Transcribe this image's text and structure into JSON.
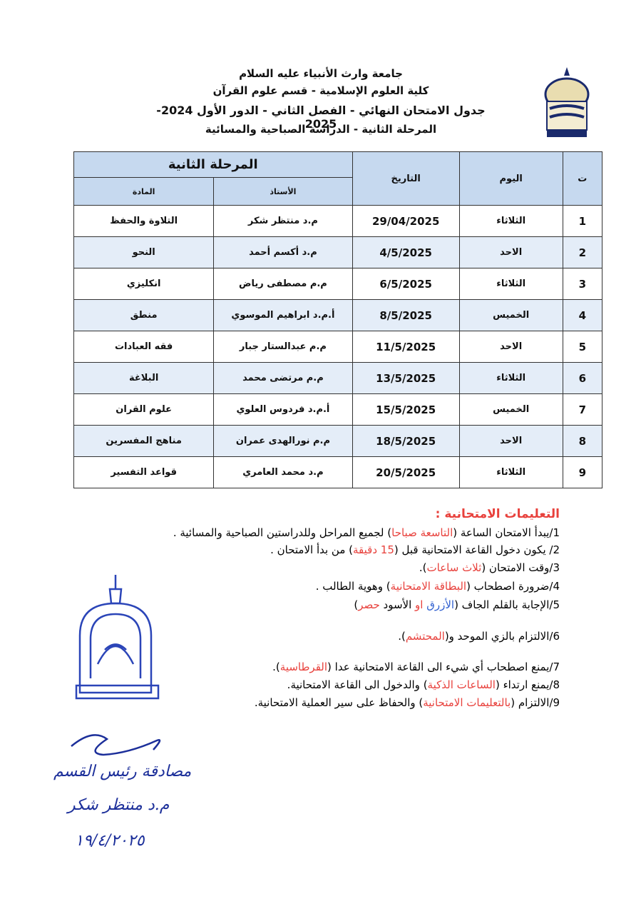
{
  "header": {
    "university": "جامعة وارث الأنبياء عليه السلام",
    "college": "كلية العلوم الإسلامية - قسم علوم القرآن",
    "schedule": "جدول الامتحان النهائي - الفصل الثاني - الدور الأول 2024-2025",
    "stage": "المرحلة الثانية - الدراسة الصباحية والمسائية"
  },
  "table": {
    "group_header": "المرحلة الثانية",
    "columns": [
      "ت",
      "اليوم",
      "التاريخ",
      "الأستاذ",
      "المادة"
    ],
    "rows": [
      [
        1,
        "الثلاثاء",
        "29/04/2025",
        "م.د منتظر شكر",
        "التلاوة والحفظ"
      ],
      [
        2,
        "الاحد",
        "4/5/2025",
        "م.د أكسم أحمد",
        "النحو"
      ],
      [
        3,
        "الثلاثاء",
        "6/5/2025",
        "م.م مصطفى رياض",
        "انكليزي"
      ],
      [
        4,
        "الخميس",
        "8/5/2025",
        "أ.م.د ابراهيم الموسوي",
        "منطق"
      ],
      [
        5,
        "الاحد",
        "11/5/2025",
        "م.م عبدالستار جبار",
        "فقه العبادات"
      ],
      [
        6,
        "الثلاثاء",
        "13/5/2025",
        "م.م مرتضى محمد",
        "البلاغة"
      ],
      [
        7,
        "الخميس",
        "15/5/2025",
        "أ.م.د فردوس العلوي",
        "علوم القران"
      ],
      [
        8,
        "الاحد",
        "18/5/2025",
        "م.م نورالهدى عمران",
        "مناهج المفسرين"
      ],
      [
        9,
        "الثلاثاء",
        "20/5/2025",
        "م.د محمد العامري",
        "قواعد التفسير"
      ]
    ]
  },
  "instructions": {
    "title": "التعليمات الامتحانية :",
    "items": [
      {
        "parts": [
          {
            "text": "1/يبدأ الامتحان الساعة (",
            "color": "#000000"
          },
          {
            "text": "التاسعة صباحا",
            "color": "#e8413c"
          },
          {
            "text": ") لجميع المراحل وللدراستين الصباحية والمسائية .",
            "color": "#000000"
          }
        ]
      },
      {
        "parts": [
          {
            "text": "2/ يكون دخول القاعة الامتحانية قبل (",
            "color": "#000000"
          },
          {
            "text": "15 دقيقة",
            "color": "#e8413c"
          },
          {
            "text": ") من بدأ الامتحان .",
            "color": "#000000"
          }
        ]
      },
      {
        "parts": [
          {
            "text": "3/وقت الامتحان (",
            "color": "#000000"
          },
          {
            "text": "ثلاث ساعات",
            "color": "#e8413c"
          },
          {
            "text": ").",
            "color": "#000000"
          }
        ]
      },
      {
        "parts": [
          {
            "text": "4/ضرورة اصطحاب (",
            "color": "#000000"
          },
          {
            "text": "البطاقة الامتحانية",
            "color": "#e8413c"
          },
          {
            "text": ") وهوية الطالب .",
            "color": "#000000"
          }
        ]
      },
      {
        "parts": [
          {
            "text": "5/الإجابة بالقلم الجاف (",
            "color": "#000000"
          },
          {
            "text": "الأزرق",
            "color": "#2f5fd0"
          },
          {
            "text": " او ",
            "color": "#e8413c"
          },
          {
            "text": "الأسود",
            "color": "#000000"
          },
          {
            "text": " حصر",
            "color": "#e8413c"
          },
          {
            "text": ")",
            "color": "#000000"
          }
        ]
      },
      {
        "parts": [
          {
            "text": "6/الالتزام بالزي الموحد و(",
            "color": "#000000"
          },
          {
            "text": "المحتشم",
            "color": "#e8413c"
          },
          {
            "text": ").",
            "color": "#000000"
          }
        ]
      },
      {
        "parts": [
          {
            "text": "7/يمنع اصطحاب أي شيء الى القاعة الامتحانية عدا (",
            "color": "#000000"
          },
          {
            "text": "القرطاسية",
            "color": "#e8413c"
          },
          {
            "text": ").",
            "color": "#000000"
          }
        ]
      },
      {
        "parts": [
          {
            "text": "8/يمنع ارتداء (",
            "color": "#000000"
          },
          {
            "text": "الساعات الذكية",
            "color": "#e8413c"
          },
          {
            "text": ") والدخول الى القاعة الامتحانية.",
            "color": "#000000"
          }
        ]
      },
      {
        "parts": [
          {
            "text": "9/الالتزام (",
            "color": "#000000"
          },
          {
            "text": "بالتعليمات الامتحانية",
            "color": "#e8413c"
          },
          {
            "text": ") والحفاظ على سير العملية الامتحانية.",
            "color": "#000000"
          }
        ]
      }
    ]
  },
  "signature": {
    "title": "مصادقة رئيس القسم",
    "name": "م.د منتظر شكر",
    "date": "١٩/٤/٢٠٢٥"
  }
}
